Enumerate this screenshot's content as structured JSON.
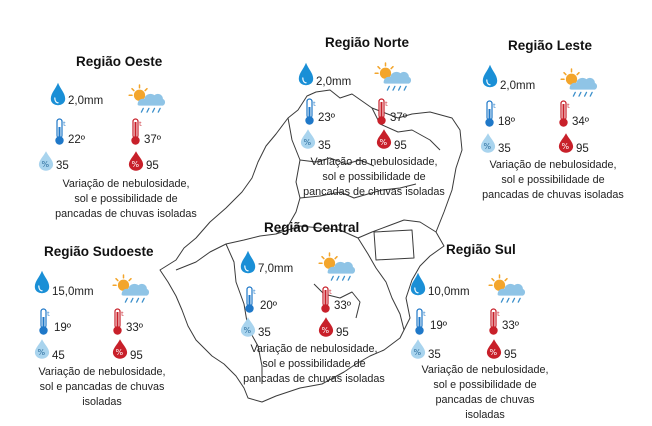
{
  "regions": {
    "oeste": {
      "title": "Região Oeste",
      "rain": "2,0mm",
      "temp_min": "22º",
      "temp_max": "37º",
      "hum_min": "35",
      "hum_max": "95",
      "desc": [
        "Variação de nebulosidade,",
        "sol e possibilidade de",
        "pancadas de chuvas isoladas"
      ]
    },
    "norte": {
      "title": "Região Norte",
      "rain": "2,0mm",
      "temp_min": "23º",
      "temp_max": "37º",
      "hum_min": "35",
      "hum_max": "95",
      "desc": [
        "Variação de nebulosidade,",
        "sol e possibilidade de",
        "pancadas de chuvas isoladas"
      ]
    },
    "leste": {
      "title": "Região Leste",
      "rain": "2,0mm",
      "temp_min": "18º",
      "temp_max": "34º",
      "hum_min": "35",
      "hum_max": "95",
      "desc": [
        "Variação de nebulosidade,",
        "sol e possibilidade de",
        "pancadas de chuvas isoladas"
      ]
    },
    "sudoeste": {
      "title": "Região Sudoeste",
      "rain": "15,0mm",
      "temp_min": "19º",
      "temp_max": "33º",
      "hum_min": "45",
      "hum_max": "95",
      "desc": [
        "Variação de nebulosidade,",
        "sol e pancadas de chuvas",
        "isoladas"
      ]
    },
    "central": {
      "title": "Região Central",
      "rain": "7,0mm",
      "temp_min": "20º",
      "temp_max": "33º",
      "hum_min": "35",
      "hum_max": "95",
      "desc": [
        "Variação de nebulosidade,",
        "sol e possibilidade de",
        "pancadas de chuvas isoladas"
      ]
    },
    "sul": {
      "title": "Região Sul",
      "rain": "10,0mm",
      "temp_min": "19º",
      "temp_max": "33º",
      "hum_min": "35",
      "hum_max": "95",
      "desc": [
        "Variação de nebulosidade,",
        "sol e possibilidade de",
        "pancadas de chuvas",
        "isoladas"
      ]
    }
  },
  "icons": {
    "rain": "rain-drop-icon",
    "weather": "sun-cloud-rain-icon",
    "temp_min": "thermometer-cold-icon",
    "temp_max": "thermometer-hot-icon",
    "hum_min": "humidity-low-icon",
    "hum_max": "humidity-high-icon"
  },
  "colors": {
    "rain_drop": "#1a8fd6",
    "cold": "#1f78c8",
    "hot": "#c8202a",
    "humidity_low": "#a9d4ee",
    "humidity_high": "#c8202a",
    "sun": "#f3a52b",
    "cloud": "#8fc4e6",
    "map_outline": "#3a3a3a"
  }
}
